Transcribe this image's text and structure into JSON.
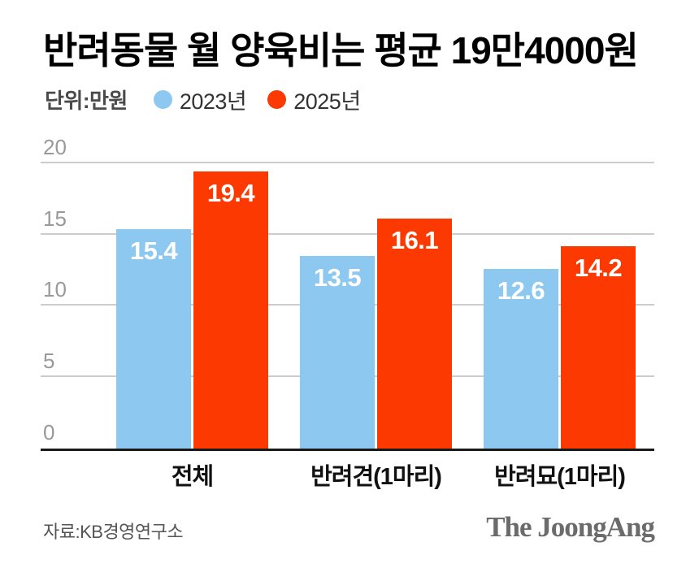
{
  "title": "반려동물 월 양육비는 평균 19만4000원",
  "unit_label": "단위:만원",
  "legend": [
    {
      "label": "2023년",
      "color": "#8CC8EF"
    },
    {
      "label": "2025년",
      "color": "#FB3900"
    }
  ],
  "source": "자료:KB경영연구소",
  "publisher": "The JoongAng",
  "colors": {
    "bar_2023": "#8CC8EF",
    "bar_2025": "#FB3900",
    "gridline": "#cccccc",
    "axis": "#1a1a1a",
    "tick_label": "#999999"
  },
  "chart_data": {
    "type": "bar",
    "categories": [
      "전체",
      "반려견(1마리)",
      "반려묘(1마리)"
    ],
    "series": [
      {
        "name": "2023년",
        "color": "#8CC8EF",
        "values": [
          15.4,
          13.5,
          12.6
        ]
      },
      {
        "name": "2025년",
        "color": "#FB3900",
        "values": [
          19.4,
          16.1,
          14.2
        ]
      }
    ],
    "title": "반려동물 월 양육비는 평균 19만4000원",
    "xlabel": "",
    "ylabel": "만원",
    "ylim": [
      0,
      20
    ],
    "yticks": [
      0,
      5,
      10,
      15,
      20
    ],
    "grid": true,
    "legend_position": "top",
    "value_labels": "inside-top"
  }
}
